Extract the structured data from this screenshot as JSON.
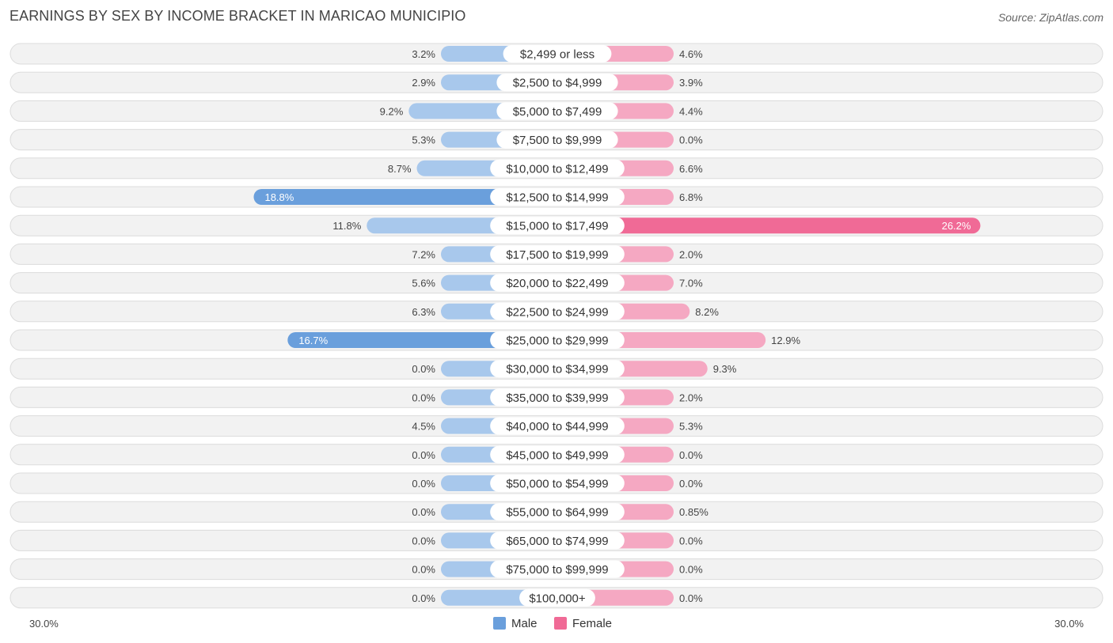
{
  "chart_data": {
    "type": "bar",
    "orientation": "horizontal-diverging",
    "title": "EARNINGS BY SEX BY INCOME BRACKET IN MARICAO MUNICIPIO",
    "source": "Source: ZipAtlas.com",
    "categories": [
      "$2,499 or less",
      "$2,500 to $4,999",
      "$5,000 to $7,499",
      "$7,500 to $9,999",
      "$10,000 to $12,499",
      "$12,500 to $14,999",
      "$15,000 to $17,499",
      "$17,500 to $19,999",
      "$20,000 to $22,499",
      "$22,500 to $24,999",
      "$25,000 to $29,999",
      "$30,000 to $34,999",
      "$35,000 to $39,999",
      "$40,000 to $44,999",
      "$45,000 to $49,999",
      "$50,000 to $54,999",
      "$55,000 to $64,999",
      "$65,000 to $74,999",
      "$75,000 to $99,999",
      "$100,000+"
    ],
    "series": [
      {
        "name": "Male",
        "color": "#6a9fdc",
        "color_light": "#a8c8ec",
        "values": [
          3.2,
          2.9,
          9.2,
          5.3,
          8.7,
          18.8,
          11.8,
          7.2,
          5.6,
          6.3,
          16.7,
          0.0,
          0.0,
          4.5,
          0.0,
          0.0,
          0.0,
          0.0,
          0.0,
          0.0
        ],
        "labels": [
          "3.2%",
          "2.9%",
          "9.2%",
          "5.3%",
          "8.7%",
          "18.8%",
          "11.8%",
          "7.2%",
          "5.6%",
          "6.3%",
          "16.7%",
          "0.0%",
          "0.0%",
          "4.5%",
          "0.0%",
          "0.0%",
          "0.0%",
          "0.0%",
          "0.0%",
          "0.0%"
        ]
      },
      {
        "name": "Female",
        "color": "#f06a96",
        "color_light": "#f5a8c2",
        "values": [
          4.6,
          3.9,
          4.4,
          0.0,
          6.6,
          6.8,
          26.2,
          2.0,
          7.0,
          8.2,
          12.9,
          9.3,
          2.0,
          5.3,
          0.0,
          0.0,
          0.85,
          0.0,
          0.0,
          0.0
        ],
        "labels": [
          "4.6%",
          "3.9%",
          "4.4%",
          "0.0%",
          "6.6%",
          "6.8%",
          "26.2%",
          "2.0%",
          "7.0%",
          "8.2%",
          "12.9%",
          "9.3%",
          "2.0%",
          "5.3%",
          "0.0%",
          "0.0%",
          "0.85%",
          "0.0%",
          "0.0%",
          "0.0%"
        ]
      }
    ],
    "xlim": [
      -30,
      30
    ],
    "axis_left_label": "30.0%",
    "axis_right_label": "30.0%",
    "legend": [
      "Male",
      "Female"
    ],
    "legend_position": "bottom-center"
  }
}
